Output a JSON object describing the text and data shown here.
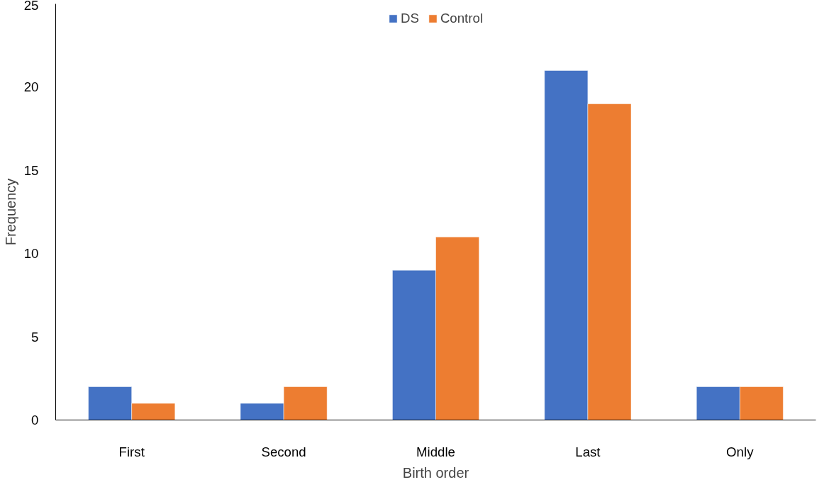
{
  "chart_data": {
    "type": "bar",
    "xlabel": "Birth order",
    "ylabel": "Frequency",
    "categories": [
      "First",
      "Second",
      "Middle",
      "Last",
      "Only"
    ],
    "series": [
      {
        "name": "DS",
        "color": "#4472c4",
        "values": [
          2,
          1,
          9,
          21,
          2
        ]
      },
      {
        "name": "Control",
        "color": "#ed7d31",
        "values": [
          1,
          2,
          11,
          19,
          2
        ]
      }
    ],
    "ylim": [
      0,
      25
    ],
    "yticks": [
      0,
      5,
      10,
      15,
      20,
      25
    ],
    "grid": false,
    "legend": "top"
  }
}
